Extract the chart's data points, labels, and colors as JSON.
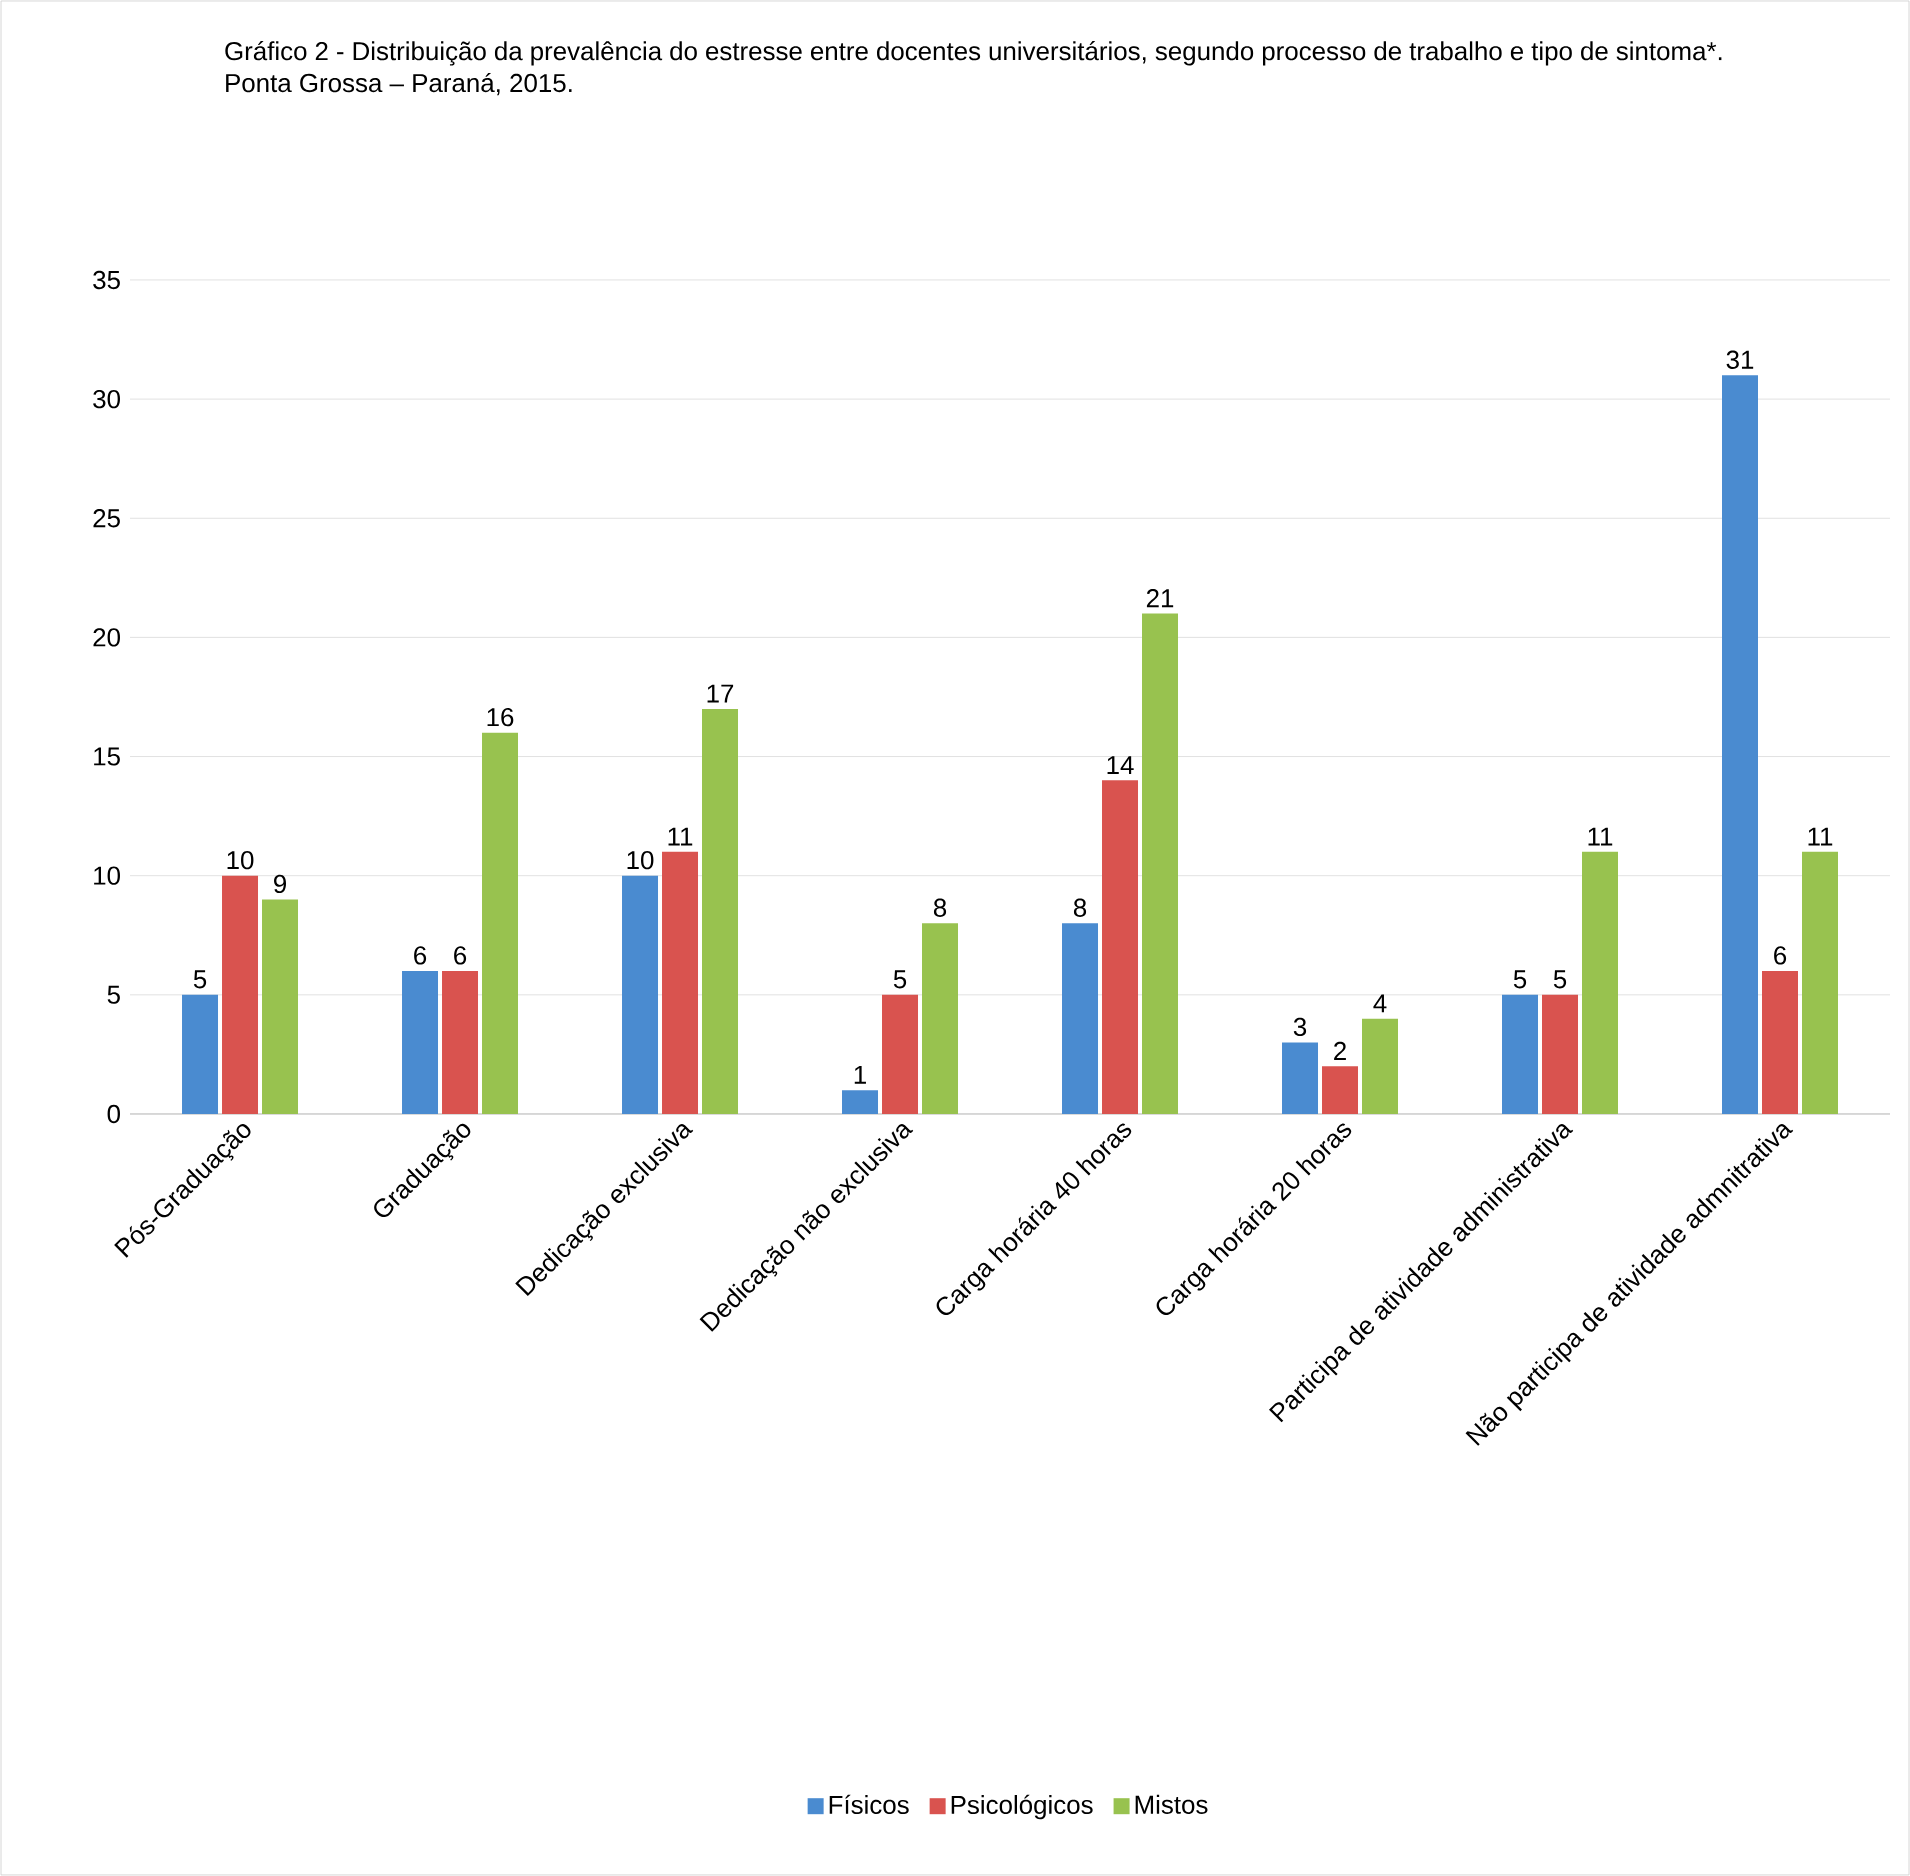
{
  "chart_data": {
    "type": "bar",
    "title": "Gráfico 2 - Distribuição da prevalência do estresse entre docentes universitários, segundo processo de trabalho e tipo de sintoma*. Ponta Grossa – Paraná, 2015.",
    "categories": [
      "Pós-Graduação",
      "Graduação",
      "Dedicação exclusiva",
      "Dedicação não exclusiva",
      "Carga horária 40 horas",
      "Carga horária 20 horas",
      "Participa de atividade administrativa",
      "Não participa de atividade admnitrativa"
    ],
    "series": [
      {
        "name": "Físicos",
        "color": "#4a8bd0",
        "values": [
          5,
          6,
          10,
          1,
          8,
          3,
          5,
          31
        ]
      },
      {
        "name": "Psicológicos",
        "color": "#d9534f",
        "values": [
          10,
          6,
          11,
          5,
          14,
          2,
          5,
          6
        ]
      },
      {
        "name": "Mistos",
        "color": "#98c24f",
        "values": [
          9,
          16,
          17,
          8,
          21,
          4,
          11,
          11
        ]
      }
    ],
    "ylim": [
      0,
      35
    ],
    "yticks": [
      0,
      5,
      10,
      15,
      20,
      25,
      30,
      35
    ],
    "grid": "y",
    "legend": "bottom",
    "data_labels": true
  }
}
